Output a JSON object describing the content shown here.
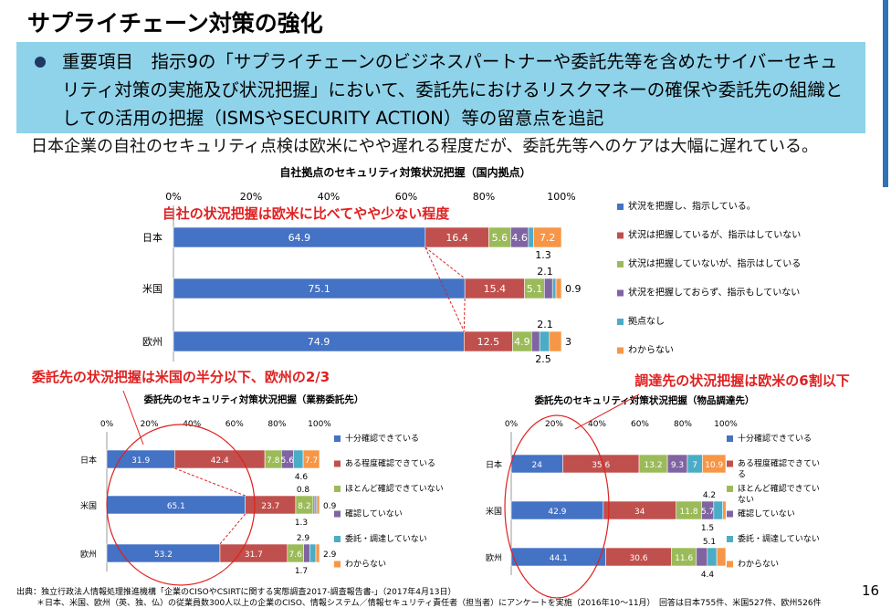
{
  "slide": {
    "title": "サプライチェーン対策の強化",
    "callout": "重要項目　指示9の「サプライチェーンのビジネスパートナーや委託先等を含めたサイバーセキュリティ対策の実施及び状況把握」において、委託先におけるリスクマネーの確保や委託先の組織としての活用の把握（ISMSやSECURITY ACTION）等の留意点を追記",
    "summary": "日本企業の自社のセキュリティ点検は欧米にやや遅れる程度だが、委託先等へのケアは大幅に遅れている。",
    "source": "出典：独立行政法人情報処理推進機構「企業のCISOやCSIRTに関する実態調査2017-調査報告書-」（2017年4月13日）",
    "footnote": "＊日本、米国、欧州（英、独、仏）の従業員数300人以上の企業のCISO、情報システム／情報セキュリティ責任者（担当者）にアンケートを実施（2016年10～11月）　回答は日本755件、米国527件、欧州526件",
    "page_number": "16",
    "colors": {
      "accent": "#2f75b5",
      "callout_bg": "#8fd3ea",
      "annotation_red": "#e02020",
      "s1": "#4472c4",
      "s2": "#c0504d",
      "s3": "#9bbb59",
      "s4": "#8064a2",
      "s5": "#4bacc6",
      "s6": "#f79646"
    }
  },
  "chart_data": [
    {
      "id": "top",
      "type": "bar",
      "title": "自社拠点のセキュリティ対策状況把握（国内拠点）",
      "annotation": "自社の状況把握は欧米に比べてやや少ない程度",
      "xlim": [
        0,
        100
      ],
      "x_ticks": [
        "0%",
        "20%",
        "40%",
        "60%",
        "80%",
        "100%"
      ],
      "categories": [
        "日本",
        "米国",
        "欧州"
      ],
      "series": [
        {
          "name": "状況を把握し、指示している。",
          "values": [
            64.9,
            75.1,
            74.9
          ]
        },
        {
          "name": "状況は把握しているが、指示はしていない",
          "values": [
            16.4,
            15.4,
            12.5
          ]
        },
        {
          "name": "状況は把握していないが、指示はしている",
          "values": [
            5.6,
            5.1,
            4.9
          ]
        },
        {
          "name": "状況を把握しておらず、指示もしていない",
          "values": [
            4.6,
            2.1,
            2.1
          ]
        },
        {
          "name": "拠点なし",
          "values": [
            1.3,
            0.9,
            2.5
          ]
        },
        {
          "name": "わからない",
          "values": [
            7.2,
            1.4,
            3.1
          ]
        }
      ],
      "data_labels": [
        {
          "cat": 0,
          "texts": [
            "64.9",
            "16.4",
            "5.6",
            "4.6",
            "",
            "7.2"
          ],
          "extras": [
            {
              "text": "1.3",
              "pos": "below"
            }
          ]
        },
        {
          "cat": 1,
          "texts": [
            "75.1",
            "15.4",
            "5.1",
            "",
            "",
            ""
          ],
          "extras": [
            {
              "text": "2.1",
              "pos": "above"
            },
            {
              "text": "0.9",
              "pos": "right"
            }
          ]
        },
        {
          "cat": 2,
          "texts": [
            "74.9",
            "12.5",
            "4.9",
            "",
            "",
            ""
          ],
          "extras": [
            {
              "text": "2.1",
              "pos": "above"
            },
            {
              "text": "3",
              "pos": "right"
            },
            {
              "text": "2.5",
              "pos": "below"
            }
          ]
        }
      ]
    },
    {
      "id": "left",
      "type": "bar",
      "title": "委託先のセキュリティ対策状況把握（業務委託先）",
      "annotation": "委託先の状況把握は米国の半分以下、欧州の2/3",
      "xlim": [
        0,
        100
      ],
      "x_ticks": [
        "0%",
        "20%",
        "40%",
        "60%",
        "80%",
        "100%"
      ],
      "categories": [
        "日本",
        "米国",
        "欧州"
      ],
      "series": [
        {
          "name": "十分確認できている",
          "values": [
            31.9,
            65.1,
            53.2
          ]
        },
        {
          "name": "ある程度確認できている",
          "values": [
            42.4,
            23.7,
            31.7
          ]
        },
        {
          "name": "ほとんど確認できていない",
          "values": [
            7.8,
            8.2,
            7.6
          ]
        },
        {
          "name": "確認していない",
          "values": [
            5.6,
            0.8,
            2.9
          ]
        },
        {
          "name": "委託・調達していない",
          "values": [
            4.6,
            0.9,
            2.9
          ]
        },
        {
          "name": "わからない",
          "values": [
            7.7,
            1.3,
            1.7
          ]
        }
      ],
      "data_labels": [
        {
          "cat": 0,
          "texts": [
            "31.9",
            "42.4",
            "7.8",
            "5.6",
            "",
            "7.7"
          ],
          "extras": [
            {
              "text": "4.6",
              "pos": "below"
            }
          ]
        },
        {
          "cat": 1,
          "texts": [
            "65.1",
            "23.7",
            "8.2",
            "",
            "",
            ""
          ],
          "extras": [
            {
              "text": "0.8",
              "pos": "above"
            },
            {
              "text": "0.9",
              "pos": "right"
            },
            {
              "text": "1.3",
              "pos": "below"
            }
          ]
        },
        {
          "cat": 2,
          "texts": [
            "53.2",
            "31.7",
            "7.6",
            "",
            "",
            ""
          ],
          "extras": [
            {
              "text": "2.9",
              "pos": "above"
            },
            {
              "text": "2.9",
              "pos": "right"
            },
            {
              "text": "1.7",
              "pos": "below"
            }
          ]
        }
      ]
    },
    {
      "id": "right",
      "type": "bar",
      "title": "委託先のセキュリティ対策状況把握（物品調達先）",
      "annotation": "調達先の状況把握は欧米の6割以下",
      "xlim": [
        0,
        100
      ],
      "x_ticks": [
        "0%",
        "20%",
        "40%",
        "60%",
        "80%",
        "100%"
      ],
      "categories": [
        "日本",
        "米国",
        "欧州"
      ],
      "series": [
        {
          "name": "十分確認できている",
          "values": [
            24,
            42.9,
            44.1
          ]
        },
        {
          "name": "ある程度確認できている",
          "values": [
            35.6,
            34,
            30.6
          ]
        },
        {
          "name": "ほとんど確認できていない",
          "values": [
            13.2,
            11.8,
            11.6
          ]
        },
        {
          "name": "確認していない",
          "values": [
            9.3,
            5.7,
            5.1
          ]
        },
        {
          "name": "委託・調達していない",
          "values": [
            7,
            4.2,
            4.4
          ]
        },
        {
          "name": "わからない",
          "values": [
            10.9,
            1.5,
            4.2
          ]
        }
      ],
      "data_labels": [
        {
          "cat": 0,
          "texts": [
            "24",
            "35.6",
            "13.2",
            "9.3",
            "7",
            "10.9"
          ],
          "extras": []
        },
        {
          "cat": 1,
          "texts": [
            "42.9",
            "34",
            "11.8",
            "5.7",
            "",
            ""
          ],
          "extras": [
            {
              "text": "4.2",
              "pos": "above"
            },
            {
              "text": "1.5",
              "pos": "below"
            }
          ]
        },
        {
          "cat": 2,
          "texts": [
            "44.1",
            "30.6",
            "11.6",
            "",
            "",
            ""
          ],
          "extras": [
            {
              "text": "5.1",
              "pos": "above"
            },
            {
              "text": "4.4",
              "pos": "below"
            }
          ]
        }
      ]
    }
  ]
}
